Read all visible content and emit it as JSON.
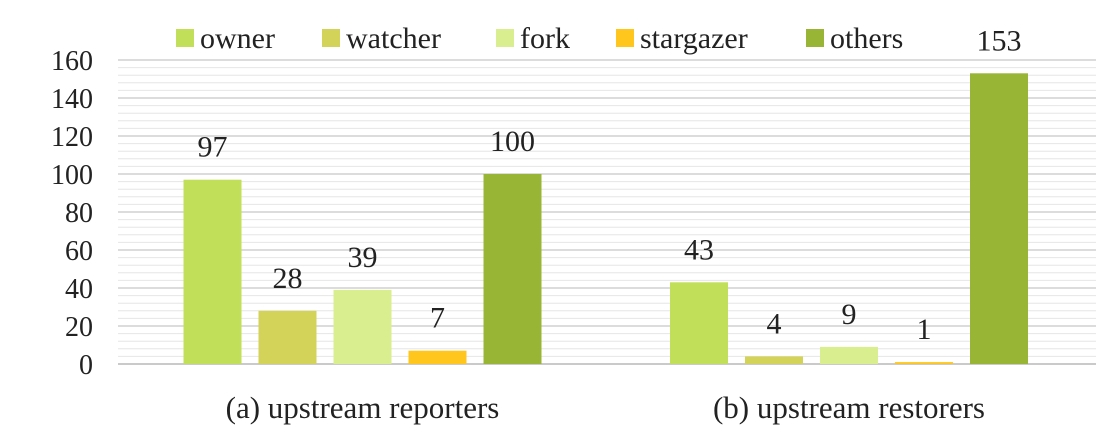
{
  "chart_data": {
    "type": "bar",
    "categories": [
      "(a) upstream reporters",
      "(b) upstream restorers"
    ],
    "series": [
      {
        "name": "owner",
        "color": "#c2df5a",
        "values": [
          97,
          43
        ]
      },
      {
        "name": "watcher",
        "color": "#d3d35a",
        "values": [
          28,
          4
        ]
      },
      {
        "name": "fork",
        "color": "#d9ee8e",
        "values": [
          39,
          9
        ]
      },
      {
        "name": "stargazer",
        "color": "#ffc61e",
        "values": [
          7,
          1
        ]
      },
      {
        "name": "others",
        "color": "#98b535",
        "values": [
          100,
          153
        ]
      }
    ],
    "yticks": [
      "0",
      "20",
      "40",
      "60",
      "80",
      "100",
      "120",
      "140",
      "160"
    ],
    "ylim": [
      0,
      160
    ],
    "grid": true,
    "legend": "top",
    "data_labels": true
  }
}
